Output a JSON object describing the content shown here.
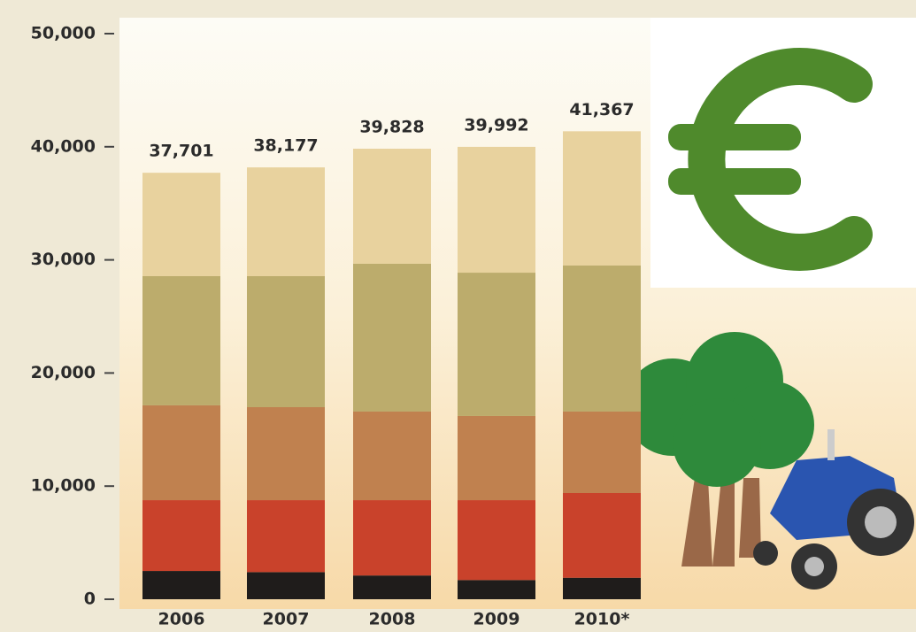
{
  "chart_data": {
    "type": "stacked-bar",
    "categories": [
      "2006",
      "2007",
      "2008",
      "2009",
      "2010*"
    ],
    "series": [
      {
        "color": "#1f1c1b",
        "values": [
          2500,
          2400,
          2100,
          1700,
          1900
        ]
      },
      {
        "color": "#c9422b",
        "values": [
          6260,
          6360,
          6660,
          7060,
          7490
        ]
      },
      {
        "color": "#c0814f",
        "values": [
          8380,
          8220,
          7830,
          7440,
          7200
        ]
      },
      {
        "color": "#bcac6c",
        "values": [
          11420,
          11580,
          13070,
          12670,
          12910
        ]
      },
      {
        "color": "#e8d29e",
        "values": [
          9141,
          9617,
          10168,
          11122,
          11867
        ]
      }
    ],
    "totals": [
      37701,
      38177,
      39828,
      39992,
      41367
    ],
    "value_labels": [
      "37,701",
      "38,177",
      "39,828",
      "39,992",
      "41,367"
    ],
    "ylim": [
      0,
      50000
    ],
    "yticks": [
      0,
      {
        "value": 10000,
        "label": "10,000"
      },
      {
        "value": 20000,
        "label": "20,000"
      },
      {
        "value": 30000,
        "label": "30,000"
      },
      {
        "value": 40000,
        "label": "40,000"
      },
      {
        "value": 50000,
        "label": "50,000"
      }
    ]
  }
}
